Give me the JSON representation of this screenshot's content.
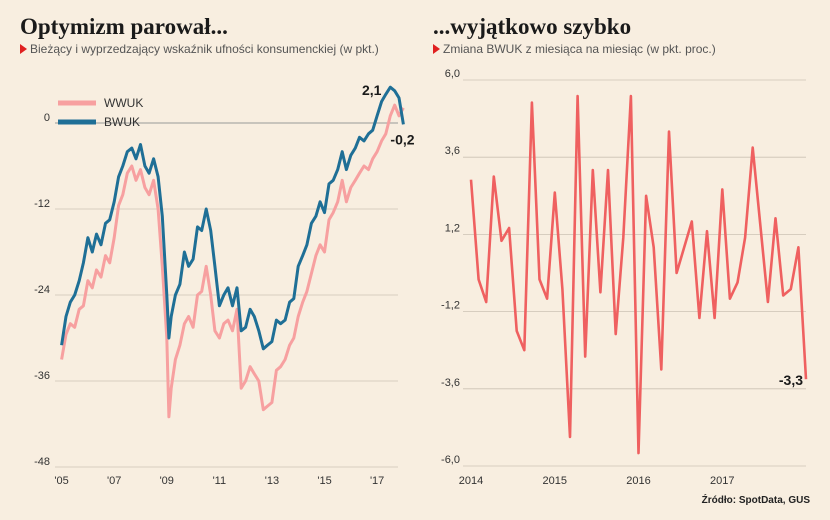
{
  "left": {
    "title": "Optymizm parował...",
    "subtitle": "Bieżący i wyprzedzający wskaźnik ufności konsumenckiej (w pkt.)"
  },
  "right": {
    "title": "...wyjątkowo szybko",
    "subtitle": "Zmiana BWUK z miesiąca na miesiąc (w pkt. proc.)"
  },
  "source": "Źródło: SpotData, GUS",
  "colors": {
    "wwuk": "#f7a0a0",
    "bwuk": "#1f6f96",
    "change": "#ef6060",
    "grid": "#ccc2b4"
  },
  "chart_data": [
    {
      "type": "line",
      "x_range": [
        2004.75,
        2018.25
      ],
      "ylim": [
        -48,
        6
      ],
      "yticks": [
        0,
        -12,
        -24,
        -36,
        -48
      ],
      "ytick_labels": [
        "0",
        "-12",
        "-24",
        "-36",
        "-48"
      ],
      "xticks": [
        2005,
        2007,
        2009,
        2011,
        2013,
        2015,
        2017
      ],
      "xtick_labels": [
        "'05",
        "'07",
        "'09",
        "'11",
        "'13",
        "'15",
        "'17"
      ],
      "legend_position": "top-left",
      "series": [
        {
          "name": "WWUK",
          "points": [
            [
              2005.0,
              -33
            ],
            [
              2005.17,
              -29.5
            ],
            [
              2005.33,
              -28
            ],
            [
              2005.5,
              -28.5
            ],
            [
              2005.67,
              -26
            ],
            [
              2005.83,
              -25.5
            ],
            [
              2006.0,
              -22
            ],
            [
              2006.17,
              -23
            ],
            [
              2006.33,
              -20.5
            ],
            [
              2006.5,
              -21.5
            ],
            [
              2006.67,
              -18.5
            ],
            [
              2006.83,
              -19.5
            ],
            [
              2007.0,
              -16
            ],
            [
              2007.17,
              -11.5
            ],
            [
              2007.33,
              -10
            ],
            [
              2007.5,
              -7
            ],
            [
              2007.67,
              -6
            ],
            [
              2007.83,
              -8
            ],
            [
              2008.0,
              -6.5
            ],
            [
              2008.17,
              -9
            ],
            [
              2008.33,
              -10
            ],
            [
              2008.5,
              -8
            ],
            [
              2008.67,
              -12
            ],
            [
              2008.83,
              -20
            ],
            [
              2009.0,
              -30
            ],
            [
              2009.08,
              -41
            ],
            [
              2009.17,
              -37
            ],
            [
              2009.33,
              -33
            ],
            [
              2009.5,
              -31
            ],
            [
              2009.67,
              -28
            ],
            [
              2009.83,
              -27
            ],
            [
              2010.0,
              -28.5
            ],
            [
              2010.17,
              -24
            ],
            [
              2010.33,
              -23.5
            ],
            [
              2010.5,
              -20
            ],
            [
              2010.67,
              -24
            ],
            [
              2010.83,
              -29
            ],
            [
              2011.0,
              -30
            ],
            [
              2011.17,
              -28
            ],
            [
              2011.33,
              -27.5
            ],
            [
              2011.5,
              -29
            ],
            [
              2011.67,
              -26
            ],
            [
              2011.83,
              -37
            ],
            [
              2012.0,
              -36
            ],
            [
              2012.17,
              -34
            ],
            [
              2012.33,
              -35
            ],
            [
              2012.5,
              -36
            ],
            [
              2012.67,
              -40
            ],
            [
              2012.83,
              -39.5
            ],
            [
              2013.0,
              -39
            ],
            [
              2013.17,
              -34.5
            ],
            [
              2013.33,
              -34
            ],
            [
              2013.5,
              -33
            ],
            [
              2013.67,
              -31
            ],
            [
              2013.83,
              -30
            ],
            [
              2014.0,
              -27
            ],
            [
              2014.17,
              -25
            ],
            [
              2014.33,
              -23.5
            ],
            [
              2014.5,
              -21
            ],
            [
              2014.67,
              -18.5
            ],
            [
              2014.83,
              -17
            ],
            [
              2015.0,
              -18
            ],
            [
              2015.17,
              -13.5
            ],
            [
              2015.33,
              -12.5
            ],
            [
              2015.5,
              -11
            ],
            [
              2015.67,
              -8
            ],
            [
              2015.83,
              -11
            ],
            [
              2016.0,
              -9
            ],
            [
              2016.17,
              -8
            ],
            [
              2016.33,
              -7
            ],
            [
              2016.5,
              -6
            ],
            [
              2016.67,
              -6.5
            ],
            [
              2016.83,
              -5
            ],
            [
              2017.0,
              -4
            ],
            [
              2017.17,
              -2.5
            ],
            [
              2017.33,
              -1.5
            ],
            [
              2017.5,
              1
            ],
            [
              2017.67,
              2.5
            ],
            [
              2017.83,
              1
            ],
            [
              2018.0,
              2.1
            ]
          ]
        },
        {
          "name": "BWUK",
          "points": [
            [
              2005.0,
              -31
            ],
            [
              2005.17,
              -27
            ],
            [
              2005.33,
              -25
            ],
            [
              2005.5,
              -24
            ],
            [
              2005.67,
              -22
            ],
            [
              2005.83,
              -19.5
            ],
            [
              2006.0,
              -16
            ],
            [
              2006.17,
              -18
            ],
            [
              2006.33,
              -15.5
            ],
            [
              2006.5,
              -17
            ],
            [
              2006.67,
              -14
            ],
            [
              2006.83,
              -13.5
            ],
            [
              2007.0,
              -11
            ],
            [
              2007.17,
              -7.5
            ],
            [
              2007.33,
              -6
            ],
            [
              2007.5,
              -4
            ],
            [
              2007.67,
              -3.5
            ],
            [
              2007.83,
              -5
            ],
            [
              2008.0,
              -3
            ],
            [
              2008.17,
              -6
            ],
            [
              2008.33,
              -7
            ],
            [
              2008.5,
              -5
            ],
            [
              2008.67,
              -7.5
            ],
            [
              2008.83,
              -13
            ],
            [
              2009.0,
              -24
            ],
            [
              2009.08,
              -30
            ],
            [
              2009.17,
              -27
            ],
            [
              2009.33,
              -24
            ],
            [
              2009.5,
              -22.5
            ],
            [
              2009.67,
              -18
            ],
            [
              2009.83,
              -20
            ],
            [
              2010.0,
              -19
            ],
            [
              2010.17,
              -14.5
            ],
            [
              2010.33,
              -15
            ],
            [
              2010.5,
              -12
            ],
            [
              2010.67,
              -15
            ],
            [
              2010.83,
              -20
            ],
            [
              2011.0,
              -25.5
            ],
            [
              2011.17,
              -24
            ],
            [
              2011.33,
              -23
            ],
            [
              2011.5,
              -25.5
            ],
            [
              2011.67,
              -23
            ],
            [
              2011.83,
              -29
            ],
            [
              2012.0,
              -28.5
            ],
            [
              2012.17,
              -26
            ],
            [
              2012.33,
              -27
            ],
            [
              2012.5,
              -29
            ],
            [
              2012.67,
              -31.5
            ],
            [
              2012.83,
              -31
            ],
            [
              2013.0,
              -30.5
            ],
            [
              2013.17,
              -27.5
            ],
            [
              2013.33,
              -28
            ],
            [
              2013.5,
              -27.5
            ],
            [
              2013.67,
              -25
            ],
            [
              2013.83,
              -24.5
            ],
            [
              2014.0,
              -20
            ],
            [
              2014.17,
              -18.5
            ],
            [
              2014.33,
              -17
            ],
            [
              2014.5,
              -14
            ],
            [
              2014.67,
              -13
            ],
            [
              2014.83,
              -11
            ],
            [
              2015.0,
              -12.5
            ],
            [
              2015.17,
              -8.5
            ],
            [
              2015.33,
              -8
            ],
            [
              2015.5,
              -6.5
            ],
            [
              2015.67,
              -4
            ],
            [
              2015.83,
              -6.5
            ],
            [
              2016.0,
              -4.5
            ],
            [
              2016.17,
              -3.5
            ],
            [
              2016.33,
              -2
            ],
            [
              2016.5,
              -2.5
            ],
            [
              2016.67,
              -1.5
            ],
            [
              2016.83,
              -1
            ],
            [
              2017.0,
              1
            ],
            [
              2017.17,
              3
            ],
            [
              2017.33,
              4
            ],
            [
              2017.5,
              5
            ],
            [
              2017.67,
              4.5
            ],
            [
              2017.83,
              3.5
            ],
            [
              2018.0,
              -0.2
            ]
          ]
        }
      ],
      "annotations": [
        {
          "text": "2,1",
          "x": 2018.0,
          "y": 2.1
        },
        {
          "text": "-0,2",
          "x": 2018.0,
          "y": -0.2
        }
      ]
    },
    {
      "type": "line",
      "x_range": [
        2014.0,
        2018.0
      ],
      "ylim": [
        -6,
        6
      ],
      "yticks": [
        6,
        3.6,
        1.2,
        -1.2,
        -3.6,
        -6
      ],
      "ytick_labels": [
        "6,0",
        "3,6",
        "1,2",
        "-1,2",
        "-3,6",
        "-6,0"
      ],
      "xticks": [
        2014,
        2015,
        2016,
        2017
      ],
      "xtick_labels": [
        "2014",
        "2015",
        "2016",
        "2017"
      ],
      "series": [
        {
          "values": [
            2.9,
            -0.2,
            -0.9,
            3.0,
            1.0,
            1.4,
            -1.8,
            -2.4,
            5.3,
            -0.2,
            -0.8,
            2.5,
            -0.5,
            -5.1,
            5.5,
            -2.6,
            3.2,
            -0.6,
            3.2,
            -1.9,
            1.1,
            5.5,
            -5.6,
            2.4,
            0.8,
            -3.0,
            4.4,
            0.0,
            0.8,
            1.6,
            -1.4,
            1.3,
            -1.4,
            2.6,
            -0.8,
            -0.3,
            1.1,
            3.9,
            1.5,
            -0.9,
            1.7,
            -0.7,
            -0.5,
            0.8,
            -3.3
          ]
        }
      ],
      "annotations": [
        {
          "text": "-3,3",
          "index": 44,
          "y": -3.3
        }
      ]
    }
  ]
}
